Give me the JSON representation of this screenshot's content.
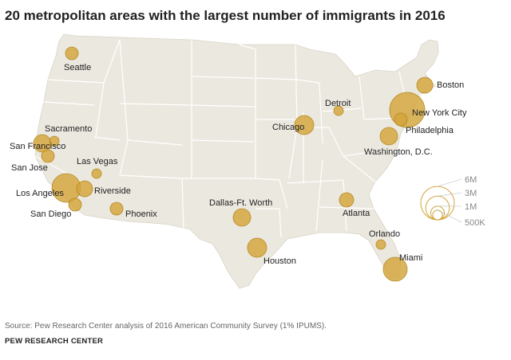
{
  "title": "20 metropolitan areas with the largest number of immigrants in 2016",
  "source": "Source: Pew Research Center analysis of 2016 American Community Survey (1% IPUMS).",
  "org": "PEW RESEARCH CENTER",
  "colors": {
    "land": "#ebe8df",
    "state_border": "#ffffff",
    "bubble_fill": "#d3a53a",
    "bubble_stroke": "#b58a25",
    "label": "#222222",
    "legend_ring": "#d3a53a",
    "legend_text": "#888888"
  },
  "legend": {
    "items": [
      {
        "label": "6M",
        "value": 6000000
      },
      {
        "label": "3M",
        "value": 3000000
      },
      {
        "label": "1M",
        "value": 1000000
      },
      {
        "label": "500K",
        "value": 500000
      }
    ]
  },
  "metros": [
    {
      "name": "Seattle",
      "label": "Seattle"
    },
    {
      "name": "San Francisco",
      "label": "San Francisco"
    },
    {
      "name": "Sacramento",
      "label": "Sacramento"
    },
    {
      "name": "San Jose",
      "label": "San Jose"
    },
    {
      "name": "Los Angeles",
      "label": "Los Angeles"
    },
    {
      "name": "Riverside",
      "label": "Riverside"
    },
    {
      "name": "San Diego",
      "label": "San Diego"
    },
    {
      "name": "Las Vegas",
      "label": "Las Vegas"
    },
    {
      "name": "Phoenix",
      "label": "Phoenix"
    },
    {
      "name": "Dallas-Ft. Worth",
      "label": "Dallas-Ft. Worth"
    },
    {
      "name": "Houston",
      "label": "Houston"
    },
    {
      "name": "Chicago",
      "label": "Chicago"
    },
    {
      "name": "Detroit",
      "label": "Detroit"
    },
    {
      "name": "Boston",
      "label": "Boston"
    },
    {
      "name": "New York City",
      "label": "New York City"
    },
    {
      "name": "Philadelphia",
      "label": "Philadelphia"
    },
    {
      "name": "Washington, D.C.",
      "label": "Washington, D.C."
    },
    {
      "name": "Atlanta",
      "label": "Atlanta"
    },
    {
      "name": "Orlando",
      "label": "Orlando"
    },
    {
      "name": "Miami",
      "label": "Miami"
    }
  ]
}
